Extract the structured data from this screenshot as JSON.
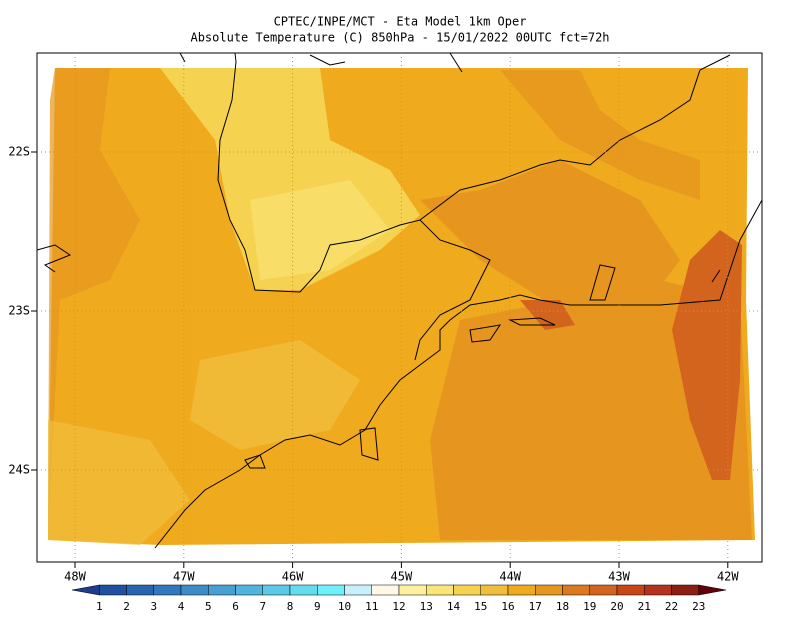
{
  "header": {
    "title": "CPTEC/INPE/MCT -  Eta Model 1km Oper",
    "subtitle": "Absolute Temperature (C) 850hPa - 15/01/2022 00UTC fct=72h"
  },
  "map": {
    "lat_labels": [
      "22S",
      "23S",
      "24S"
    ],
    "lon_labels": [
      "48W",
      "47W",
      "46W",
      "45W",
      "44W",
      "43W",
      "42W"
    ]
  },
  "colorbar": {
    "labels": [
      1,
      2,
      3,
      4,
      5,
      6,
      7,
      8,
      9,
      10,
      11,
      12,
      13,
      14,
      15,
      16,
      17,
      18,
      19,
      20,
      21,
      22,
      23
    ],
    "colors": [
      "#1e3c8c",
      "#2050a0",
      "#2864b0",
      "#3278be",
      "#3c8cc8",
      "#46a0d2",
      "#50b4dc",
      "#5ac8e6",
      "#64dcf0",
      "#6ef0fa",
      "#c8f0fa",
      "#fff8e6",
      "#fff0a0",
      "#fae678",
      "#f5d250",
      "#f0be3c",
      "#f0aa1e",
      "#e6961e",
      "#dc781e",
      "#d2641e",
      "#c84614",
      "#b4321e",
      "#8c1e14",
      "#64000a"
    ]
  }
}
